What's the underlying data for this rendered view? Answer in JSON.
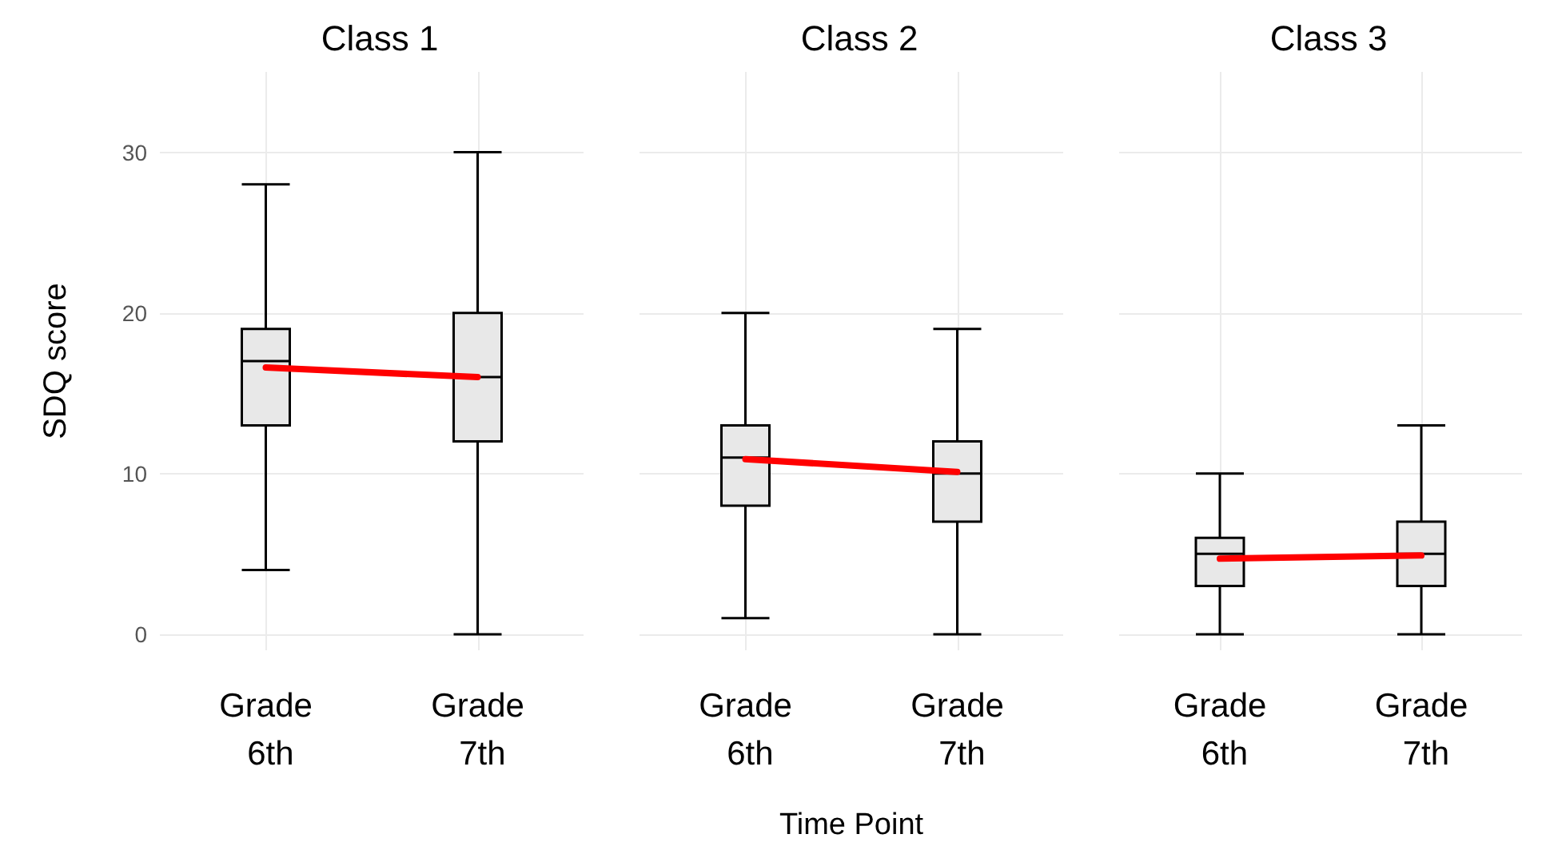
{
  "chart_data": [
    {
      "type": "box",
      "title": "Class 1",
      "ylabel": "SDQ score",
      "categories": [
        "Grade 6th",
        "Grade 7th"
      ],
      "color": "#e8e8e8",
      "boxes": [
        {
          "low": 4,
          "q1": 13,
          "median": 17,
          "q3": 19,
          "high": 28
        },
        {
          "low": 0,
          "q1": 12,
          "median": 16,
          "q3": 20,
          "high": 30
        }
      ],
      "series": [
        {
          "type": "line",
          "color": "#ff0000",
          "values": [
            16.6,
            16.0
          ]
        }
      ],
      "ylim": [
        -1,
        35
      ],
      "yticks": [
        0,
        10,
        20,
        30
      ],
      "grid": true,
      "marker": "none"
    },
    {
      "type": "box",
      "title": "Class 2",
      "xlabel": "Time Point",
      "categories": [
        "Grade 6th",
        "Grade 7th"
      ],
      "color": "#e8e8e8",
      "boxes": [
        {
          "low": 1,
          "q1": 8,
          "median": 11,
          "q3": 13,
          "high": 20
        },
        {
          "low": 0,
          "q1": 7,
          "median": 10,
          "q3": 12,
          "high": 19
        }
      ],
      "series": [
        {
          "type": "line",
          "color": "#ff0000",
          "values": [
            10.9,
            10.1
          ]
        }
      ],
      "ylim": [
        -1,
        35
      ],
      "yticks": [
        0,
        10,
        20,
        30
      ],
      "grid": true,
      "marker": "none",
      "tick_labels": "x"
    },
    {
      "type": "box",
      "title": "Class 3",
      "categories": [
        "Grade 6th",
        "Grade 7th"
      ],
      "color": "#e8e8e8",
      "boxes": [
        {
          "low": 0,
          "q1": 3,
          "median": 5,
          "q3": 6,
          "high": 10
        },
        {
          "low": 0,
          "q1": 3,
          "median": 5,
          "q3": 7,
          "high": 13
        }
      ],
      "series": [
        {
          "type": "line",
          "color": "#ff0000",
          "values": [
            4.7,
            4.9
          ]
        }
      ],
      "ylim": [
        -1,
        35
      ],
      "yticks": [
        0,
        10,
        20,
        30
      ],
      "grid": true,
      "marker": "none",
      "tick_labels": "x"
    }
  ]
}
